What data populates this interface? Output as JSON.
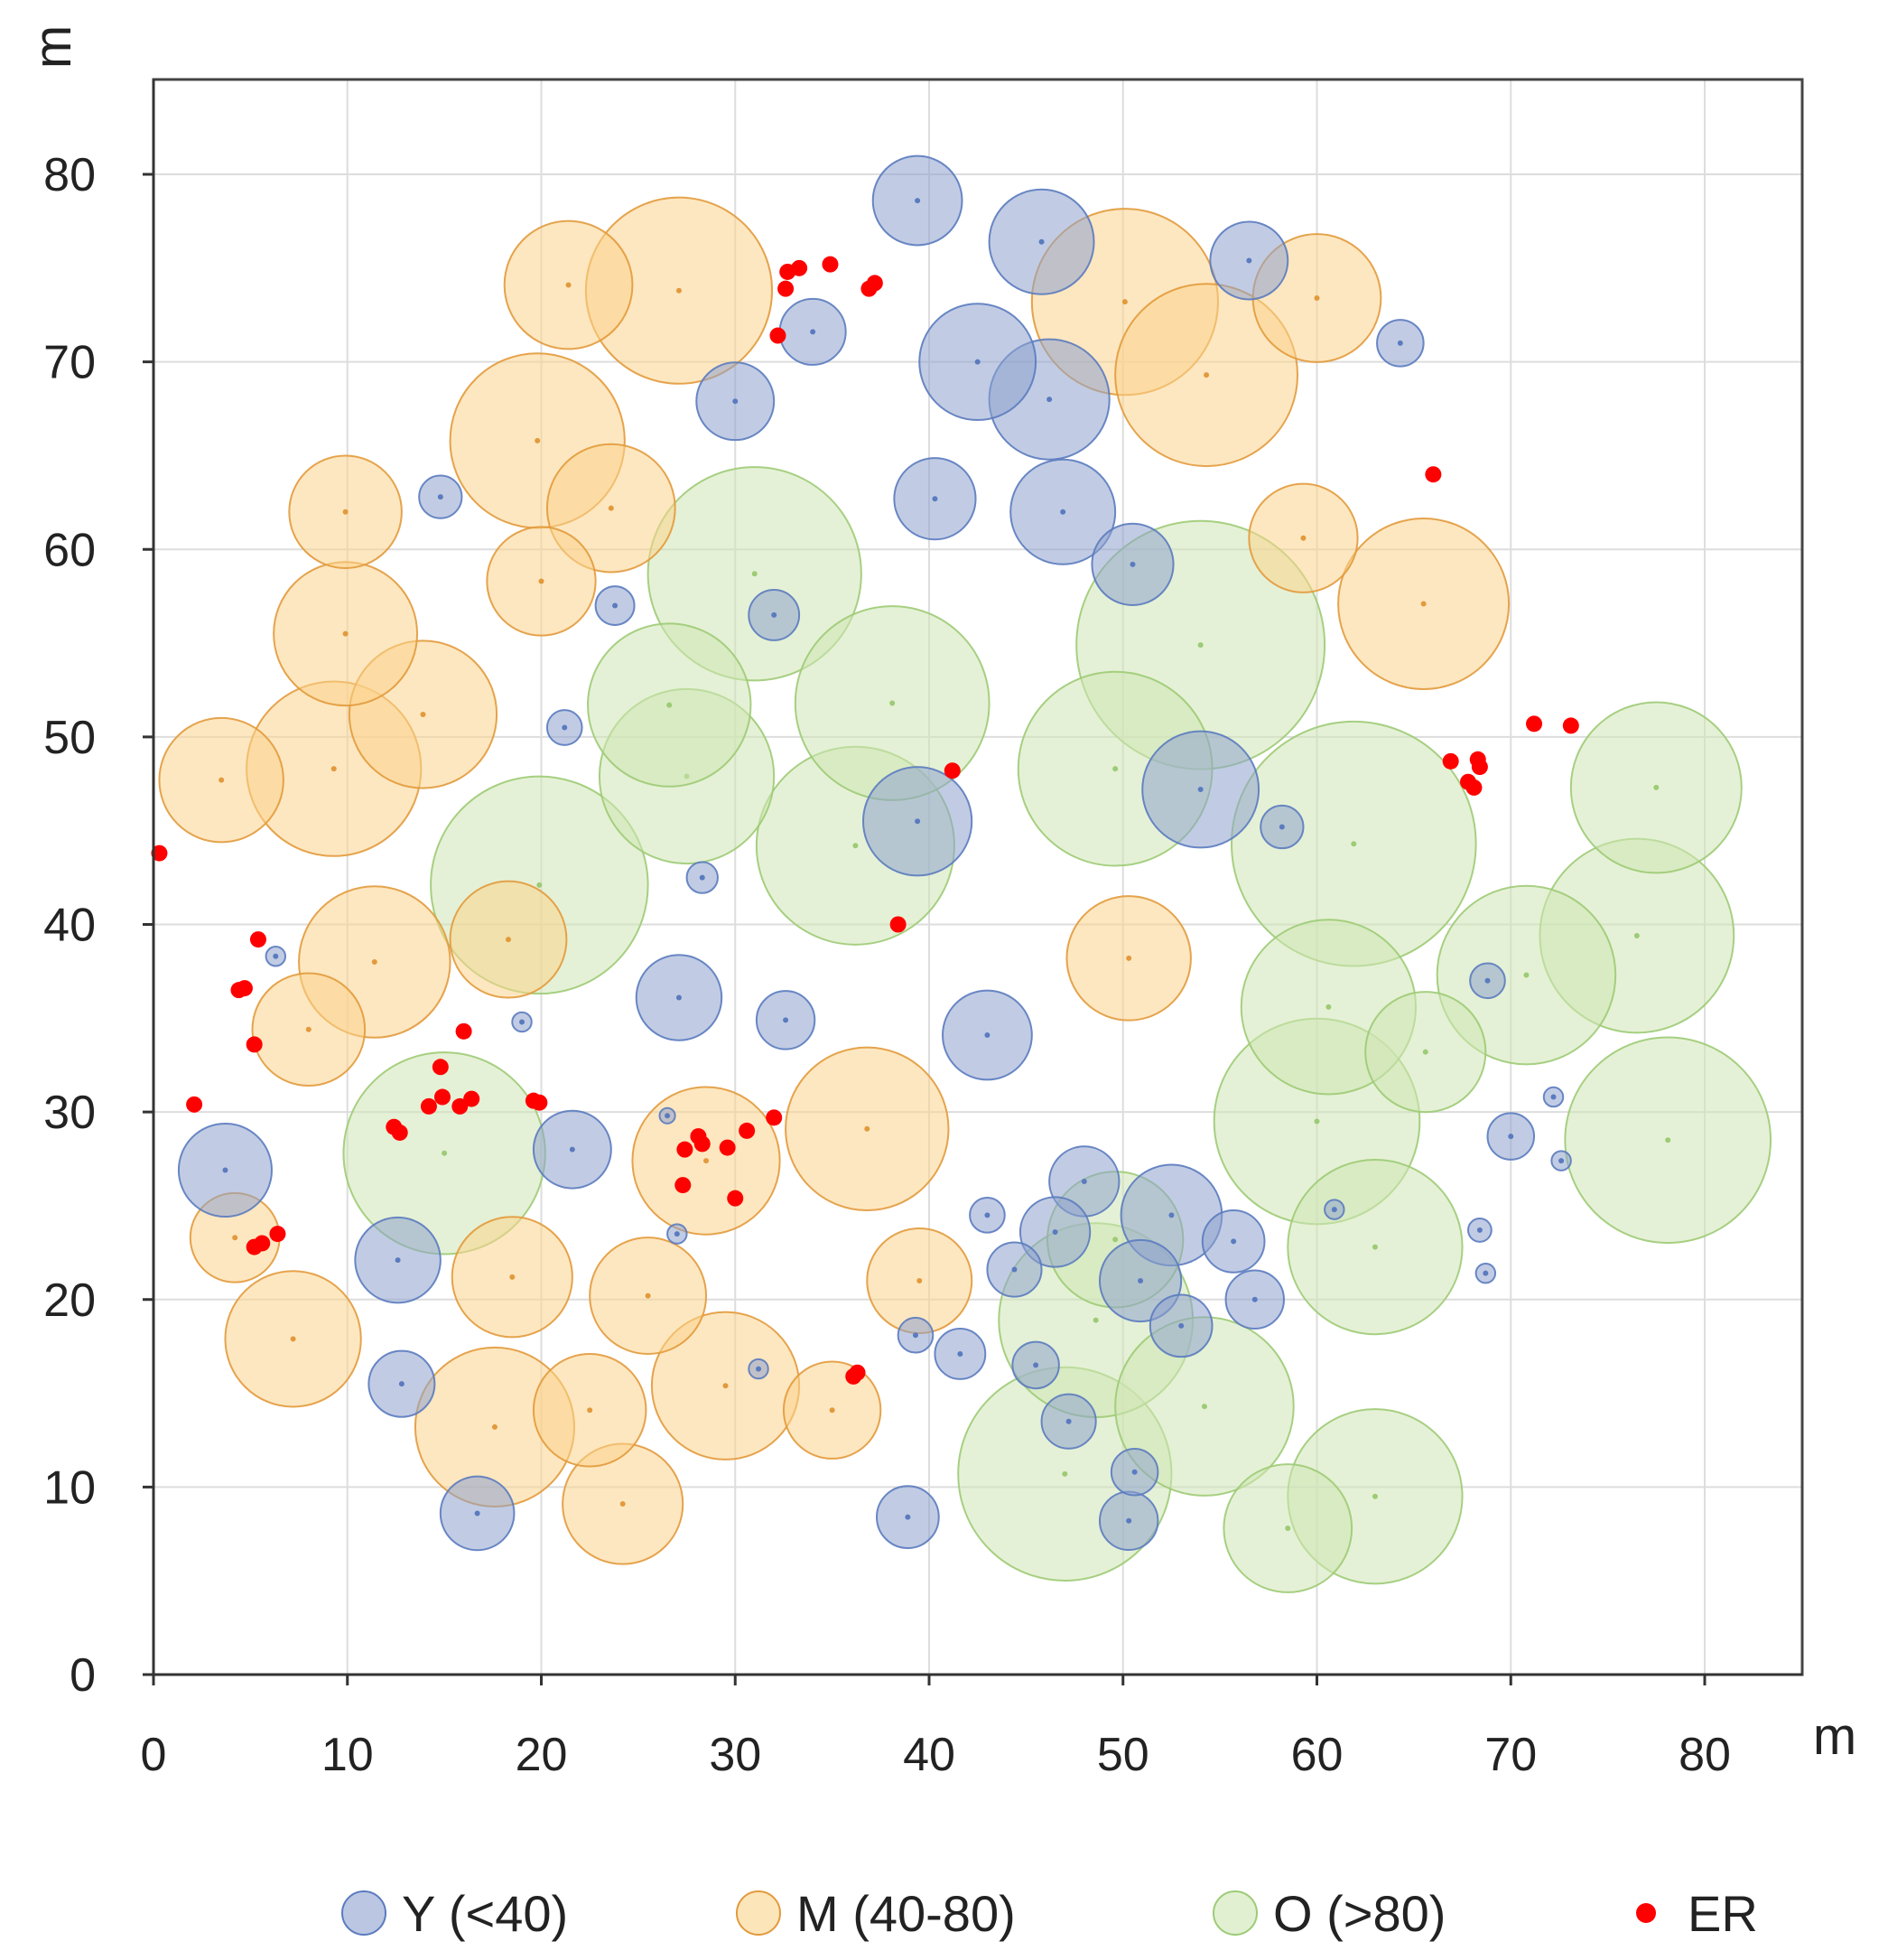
{
  "chart_data": {
    "type": "scatter",
    "title": "",
    "xlabel": "m",
    "ylabel": "m",
    "xlim": [
      0,
      85
    ],
    "ylim": [
      0,
      85
    ],
    "xticks": [
      0,
      10,
      20,
      30,
      40,
      50,
      60,
      70,
      80
    ],
    "yticks": [
      0,
      10,
      20,
      30,
      40,
      50,
      60,
      70,
      80
    ],
    "xtick_labels": [
      "0",
      "10",
      "20",
      "30",
      "40",
      "50",
      "60",
      "70",
      "80"
    ],
    "ytick_labels": [
      "0",
      "10",
      "20",
      "30",
      "40",
      "50",
      "60",
      "70",
      "80"
    ],
    "grid": true,
    "legend_position": "bottom",
    "series": [
      {
        "name": "Y (<40)",
        "marker": "circle",
        "fill": "#8ea2ce",
        "stroke": "#5b7bbf",
        "points": [
          [
            39.4,
            78.6,
            2.3
          ],
          [
            45.8,
            76.4,
            2.7
          ],
          [
            56.5,
            75.4,
            2.0
          ],
          [
            34.0,
            71.6,
            1.7
          ],
          [
            64.3,
            71.0,
            1.2
          ],
          [
            42.5,
            70.0,
            3.0
          ],
          [
            30.0,
            67.9,
            2.0
          ],
          [
            46.2,
            68.0,
            3.1
          ],
          [
            14.8,
            62.8,
            1.1
          ],
          [
            40.3,
            62.7,
            2.1
          ],
          [
            46.9,
            62.0,
            2.7
          ],
          [
            50.5,
            59.2,
            2.1
          ],
          [
            23.8,
            57.0,
            1.0
          ],
          [
            32.0,
            56.5,
            1.3
          ],
          [
            21.2,
            50.5,
            0.9
          ],
          [
            54.0,
            47.2,
            3.0
          ],
          [
            58.2,
            45.2,
            1.1
          ],
          [
            39.4,
            45.5,
            2.8
          ],
          [
            28.3,
            42.5,
            0.8
          ],
          [
            6.3,
            38.3,
            0.5
          ],
          [
            27.1,
            36.1,
            2.2
          ],
          [
            32.6,
            34.9,
            1.5
          ],
          [
            43.0,
            34.1,
            2.3
          ],
          [
            19.0,
            34.8,
            0.5
          ],
          [
            3.7,
            26.9,
            2.4
          ],
          [
            21.6,
            28.0,
            2.0
          ],
          [
            26.5,
            29.8,
            0.4
          ],
          [
            12.6,
            22.1,
            2.2
          ],
          [
            27.0,
            23.5,
            0.5
          ],
          [
            43.0,
            24.5,
            0.9
          ],
          [
            48.0,
            26.3,
            1.8
          ],
          [
            52.5,
            24.5,
            2.6
          ],
          [
            46.5,
            23.6,
            1.8
          ],
          [
            44.4,
            21.6,
            1.4
          ],
          [
            55.7,
            23.1,
            1.6
          ],
          [
            50.9,
            21.0,
            2.1
          ],
          [
            56.8,
            20.0,
            1.5
          ],
          [
            53.0,
            18.6,
            1.6
          ],
          [
            39.3,
            18.1,
            0.9
          ],
          [
            41.6,
            17.1,
            1.3
          ],
          [
            45.5,
            16.5,
            1.2
          ],
          [
            31.2,
            16.3,
            0.5
          ],
          [
            12.8,
            15.5,
            1.7
          ],
          [
            47.2,
            13.5,
            1.4
          ],
          [
            16.7,
            8.6,
            1.9
          ],
          [
            38.9,
            8.4,
            1.6
          ],
          [
            50.6,
            10.8,
            1.2
          ],
          [
            50.3,
            8.2,
            1.5
          ],
          [
            60.9,
            24.8,
            0.5
          ],
          [
            68.8,
            37.0,
            0.9
          ],
          [
            70.0,
            28.7,
            1.2
          ],
          [
            72.2,
            30.8,
            0.5
          ],
          [
            72.6,
            27.4,
            0.5
          ],
          [
            68.4,
            23.7,
            0.6
          ],
          [
            68.7,
            21.4,
            0.5
          ]
        ]
      },
      {
        "name": "M (40-80)",
        "marker": "circle",
        "fill": "#fcd48c",
        "stroke": "#e29a3c",
        "points": [
          [
            21.4,
            74.1,
            3.3
          ],
          [
            27.1,
            73.8,
            4.8
          ],
          [
            50.1,
            73.2,
            4.8
          ],
          [
            60.0,
            73.4,
            3.3
          ],
          [
            54.3,
            69.3,
            4.7
          ],
          [
            19.8,
            65.8,
            4.5
          ],
          [
            23.6,
            62.2,
            3.3
          ],
          [
            9.9,
            62.0,
            2.9
          ],
          [
            20.0,
            58.3,
            2.8
          ],
          [
            9.9,
            55.5,
            3.7
          ],
          [
            13.9,
            51.2,
            3.8
          ],
          [
            59.3,
            60.6,
            2.8
          ],
          [
            65.5,
            57.1,
            4.4
          ],
          [
            9.3,
            48.3,
            4.5
          ],
          [
            3.5,
            47.7,
            3.2
          ],
          [
            11.4,
            38.0,
            3.9
          ],
          [
            18.3,
            39.2,
            3.0
          ],
          [
            8.0,
            34.4,
            2.9
          ],
          [
            50.3,
            38.2,
            3.2
          ],
          [
            28.5,
            27.4,
            3.8
          ],
          [
            36.8,
            29.1,
            4.2
          ],
          [
            4.2,
            23.3,
            2.3
          ],
          [
            18.5,
            21.2,
            3.1
          ],
          [
            25.5,
            20.2,
            3.0
          ],
          [
            39.5,
            21.0,
            2.7
          ],
          [
            7.2,
            17.9,
            3.5
          ],
          [
            29.5,
            15.4,
            3.8
          ],
          [
            17.6,
            13.2,
            4.1
          ],
          [
            22.5,
            14.1,
            2.9
          ],
          [
            35.0,
            14.1,
            2.5
          ],
          [
            24.2,
            9.1,
            3.1
          ]
        ]
      },
      {
        "name": "O (>80)",
        "marker": "circle",
        "fill": "#cfe6b4",
        "stroke": "#9dcb76",
        "points": [
          [
            31.0,
            58.7,
            5.5
          ],
          [
            38.1,
            51.8,
            5.0
          ],
          [
            26.6,
            51.7,
            4.2
          ],
          [
            54.0,
            54.9,
            6.4
          ],
          [
            27.5,
            47.9,
            4.5
          ],
          [
            49.6,
            48.3,
            5.0
          ],
          [
            36.2,
            44.2,
            5.1
          ],
          [
            19.9,
            42.1,
            5.6
          ],
          [
            61.9,
            44.3,
            6.3
          ],
          [
            77.5,
            47.3,
            4.4
          ],
          [
            70.8,
            37.3,
            4.6
          ],
          [
            76.5,
            39.4,
            5.0
          ],
          [
            60.6,
            35.6,
            4.5
          ],
          [
            65.6,
            33.2,
            3.1
          ],
          [
            15.0,
            27.8,
            5.2
          ],
          [
            60.0,
            29.5,
            5.3
          ],
          [
            78.1,
            28.5,
            5.3
          ],
          [
            63.0,
            22.8,
            4.5
          ],
          [
            48.6,
            18.9,
            5.0
          ],
          [
            49.6,
            23.2,
            3.5
          ],
          [
            54.2,
            14.3,
            4.6
          ],
          [
            47.0,
            10.7,
            5.5
          ],
          [
            58.5,
            7.8,
            3.3
          ],
          [
            63.0,
            9.5,
            4.5
          ]
        ]
      },
      {
        "name": "ER",
        "marker": "dot",
        "fill": "#ff0000",
        "stroke": "#ff0000",
        "points": [
          [
            32.7,
            74.8
          ],
          [
            33.3,
            75.0
          ],
          [
            34.9,
            75.2
          ],
          [
            32.6,
            73.9
          ],
          [
            36.9,
            73.9
          ],
          [
            37.2,
            74.2
          ],
          [
            32.2,
            71.4
          ],
          [
            66.0,
            64.0
          ],
          [
            71.2,
            50.7
          ],
          [
            73.1,
            50.6
          ],
          [
            66.9,
            48.7
          ],
          [
            68.3,
            48.8
          ],
          [
            68.4,
            48.4
          ],
          [
            67.8,
            47.6
          ],
          [
            68.1,
            47.3
          ],
          [
            41.2,
            48.2
          ],
          [
            0.3,
            43.8
          ],
          [
            38.4,
            40.0
          ],
          [
            5.4,
            39.2
          ],
          [
            4.7,
            36.6
          ],
          [
            4.4,
            36.5
          ],
          [
            5.2,
            33.6
          ],
          [
            16.0,
            34.3
          ],
          [
            14.8,
            32.4
          ],
          [
            14.2,
            30.3
          ],
          [
            14.9,
            30.8
          ],
          [
            15.8,
            30.3
          ],
          [
            16.4,
            30.7
          ],
          [
            19.6,
            30.6
          ],
          [
            19.9,
            30.5
          ],
          [
            2.1,
            30.4
          ],
          [
            12.4,
            29.2
          ],
          [
            12.7,
            28.9
          ],
          [
            32.0,
            29.7
          ],
          [
            30.6,
            29.0
          ],
          [
            28.1,
            28.7
          ],
          [
            28.3,
            28.3
          ],
          [
            27.4,
            28.0
          ],
          [
            29.6,
            28.1
          ],
          [
            27.3,
            26.1
          ],
          [
            30.0,
            25.4
          ],
          [
            6.4,
            23.5
          ],
          [
            5.6,
            23.0
          ],
          [
            5.2,
            22.8
          ],
          [
            36.3,
            16.1
          ],
          [
            36.1,
            15.9
          ]
        ]
      }
    ]
  }
}
